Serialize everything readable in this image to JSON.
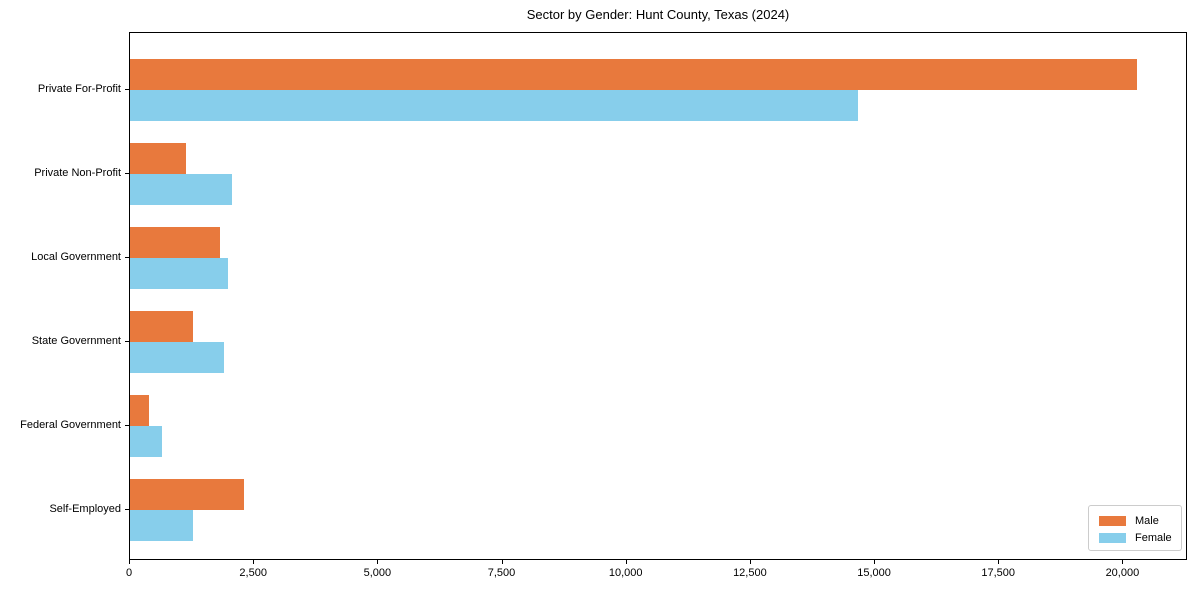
{
  "chart_data": {
    "type": "bar",
    "orientation": "horizontal",
    "title": "Sector by Gender: Hunt County, Texas (2024)",
    "categories": [
      "Private For-Profit",
      "Private Non-Profit",
      "Local Government",
      "State Government",
      "Federal Government",
      "Self-Employed"
    ],
    "series": [
      {
        "name": "Male",
        "color": "#e8793d",
        "values": [
          20280,
          1130,
          1820,
          1270,
          380,
          2300
        ]
      },
      {
        "name": "Female",
        "color": "#87ceeb",
        "values": [
          14660,
          2050,
          1970,
          1890,
          645,
          1270
        ]
      }
    ],
    "x_ticks": [
      0,
      2500,
      5000,
      7500,
      10000,
      12500,
      15000,
      17500,
      20000
    ],
    "x_tick_labels": [
      "0",
      "2,500",
      "5,000",
      "7,500",
      "10,000",
      "12,500",
      "15,000",
      "17,500",
      "20,000"
    ],
    "xlim": [
      0,
      21300
    ],
    "xlabel": "",
    "ylabel": "",
    "grid": false,
    "legend_position": "lower right"
  },
  "colors": {
    "background": "#ffffff",
    "axis": "#000000",
    "legend_border": "#cccccc",
    "male": "#e8793d",
    "female": "#87ceeb"
  }
}
